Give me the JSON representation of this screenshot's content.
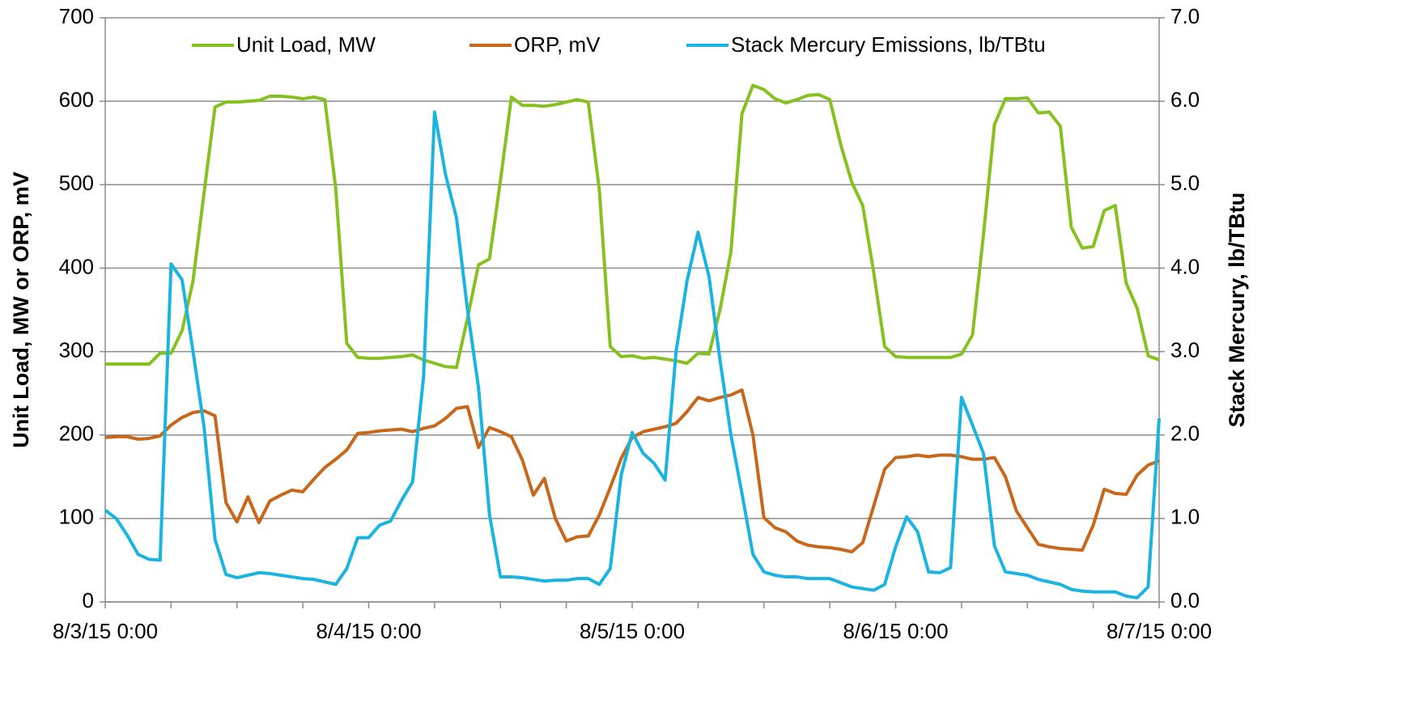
{
  "chart_data": {
    "type": "line",
    "categories": [
      "8/3/15 0:00",
      null,
      null,
      null,
      null,
      null,
      null,
      null,
      null,
      null,
      null,
      null,
      null,
      null,
      null,
      null,
      null,
      null,
      null,
      null,
      null,
      null,
      null,
      null,
      "8/4/15 0:00",
      null,
      null,
      null,
      null,
      null,
      null,
      null,
      null,
      null,
      null,
      null,
      null,
      null,
      null,
      null,
      null,
      null,
      null,
      null,
      null,
      null,
      null,
      null,
      "8/5/15 0:00",
      null,
      null,
      null,
      null,
      null,
      null,
      null,
      null,
      null,
      null,
      null,
      null,
      null,
      null,
      null,
      null,
      null,
      null,
      null,
      null,
      null,
      null,
      null,
      "8/6/15 0:00",
      null,
      null,
      null,
      null,
      null,
      null,
      null,
      null,
      null,
      null,
      null,
      null,
      null,
      null,
      null,
      null,
      null,
      null,
      null,
      null,
      null,
      null,
      null,
      "8/7/15 0:00"
    ],
    "ylabel": "Unit Load, MW or ORP, mV",
    "y2label": "Stack Mercury, lb/TBtu",
    "ylim": [
      0,
      700
    ],
    "yticks": [
      0,
      100,
      200,
      300,
      400,
      500,
      600,
      700
    ],
    "y2lim": [
      0,
      7
    ],
    "y2ticks": [
      {
        "value": 0,
        "label": "0.0"
      },
      {
        "value": 1,
        "label": "1.0"
      },
      {
        "value": 2,
        "label": "2.0"
      },
      {
        "value": 3,
        "label": "3.0"
      },
      {
        "value": 4,
        "label": "4.0"
      },
      {
        "value": 5,
        "label": "5.0"
      },
      {
        "value": 6,
        "label": "6.0"
      },
      {
        "value": 7,
        "label": "7.0"
      }
    ],
    "grid": true,
    "legend": "top",
    "series": [
      {
        "name": "Unit Load, MW",
        "color": "#86c21f",
        "values": [
          285,
          285,
          285,
          285,
          285,
          298,
          298,
          325,
          385,
          490,
          593,
          599,
          599,
          600,
          601,
          606,
          606,
          605,
          603,
          605,
          602,
          495,
          310,
          293,
          292,
          292,
          293,
          294,
          296,
          290,
          286,
          282,
          281,
          340,
          404,
          411,
          505,
          605,
          595,
          595,
          594,
          596,
          599,
          602,
          599,
          495,
          306,
          294,
          295,
          292,
          293,
          291,
          289,
          286,
          298,
          297,
          350,
          420,
          585,
          619,
          614,
          603,
          598,
          602,
          607,
          608,
          602,
          548,
          503,
          475,
          395,
          306,
          294,
          293,
          293,
          293,
          293,
          293,
          297,
          320,
          440,
          572,
          603,
          603,
          604,
          586,
          587,
          570,
          449,
          424,
          426,
          469,
          475,
          382,
          352,
          295,
          290
        ]
      },
      {
        "name": "ORP, mV",
        "color": "#c8661a",
        "values": [
          197,
          198,
          198,
          195,
          196,
          199,
          212,
          221,
          227,
          229,
          223,
          119,
          96,
          126,
          95,
          121,
          128,
          134,
          132,
          147,
          161,
          171,
          182,
          202,
          203,
          205,
          206,
          207,
          204,
          208,
          211,
          220,
          232,
          234,
          185,
          209,
          204,
          198,
          170,
          128,
          148,
          100,
          73,
          78,
          79,
          104,
          137,
          172,
          197,
          204,
          207,
          210,
          214,
          228,
          245,
          241,
          245,
          248,
          254,
          200,
          101,
          89,
          84,
          73,
          68,
          66,
          65,
          63,
          60,
          71,
          115,
          159,
          173,
          174,
          176,
          174,
          176,
          176,
          174,
          171,
          171,
          173,
          150,
          109,
          89,
          69,
          66,
          64,
          63,
          62,
          92,
          135,
          130,
          129,
          152,
          164,
          169
        ]
      },
      {
        "name": "Stack Mercury Emissions, lb/TBtu",
        "color": "#1ab4e0",
        "axis": "y2",
        "values": [
          1.1,
          1.0,
          0.8,
          0.57,
          0.51,
          0.5,
          4.05,
          3.86,
          3.0,
          2.1,
          0.75,
          0.33,
          0.29,
          0.32,
          0.35,
          0.34,
          0.32,
          0.3,
          0.28,
          0.27,
          0.24,
          0.21,
          0.4,
          0.77,
          0.77,
          0.92,
          0.97,
          1.22,
          1.44,
          2.7,
          5.87,
          5.12,
          4.6,
          3.5,
          2.57,
          1.05,
          0.3,
          0.3,
          0.29,
          0.27,
          0.25,
          0.26,
          0.26,
          0.28,
          0.28,
          0.21,
          0.4,
          1.52,
          2.03,
          1.78,
          1.66,
          1.46,
          3.0,
          3.85,
          4.43,
          3.9,
          2.9,
          2.0,
          1.3,
          0.57,
          0.36,
          0.32,
          0.3,
          0.3,
          0.28,
          0.28,
          0.28,
          0.23,
          0.18,
          0.16,
          0.14,
          0.21,
          0.66,
          1.02,
          0.84,
          0.36,
          0.35,
          0.41,
          2.45,
          2.12,
          1.78,
          0.67,
          0.36,
          0.34,
          0.32,
          0.27,
          0.24,
          0.21,
          0.15,
          0.13,
          0.12,
          0.12,
          0.12,
          0.07,
          0.05,
          0.18,
          2.2
        ]
      }
    ]
  }
}
